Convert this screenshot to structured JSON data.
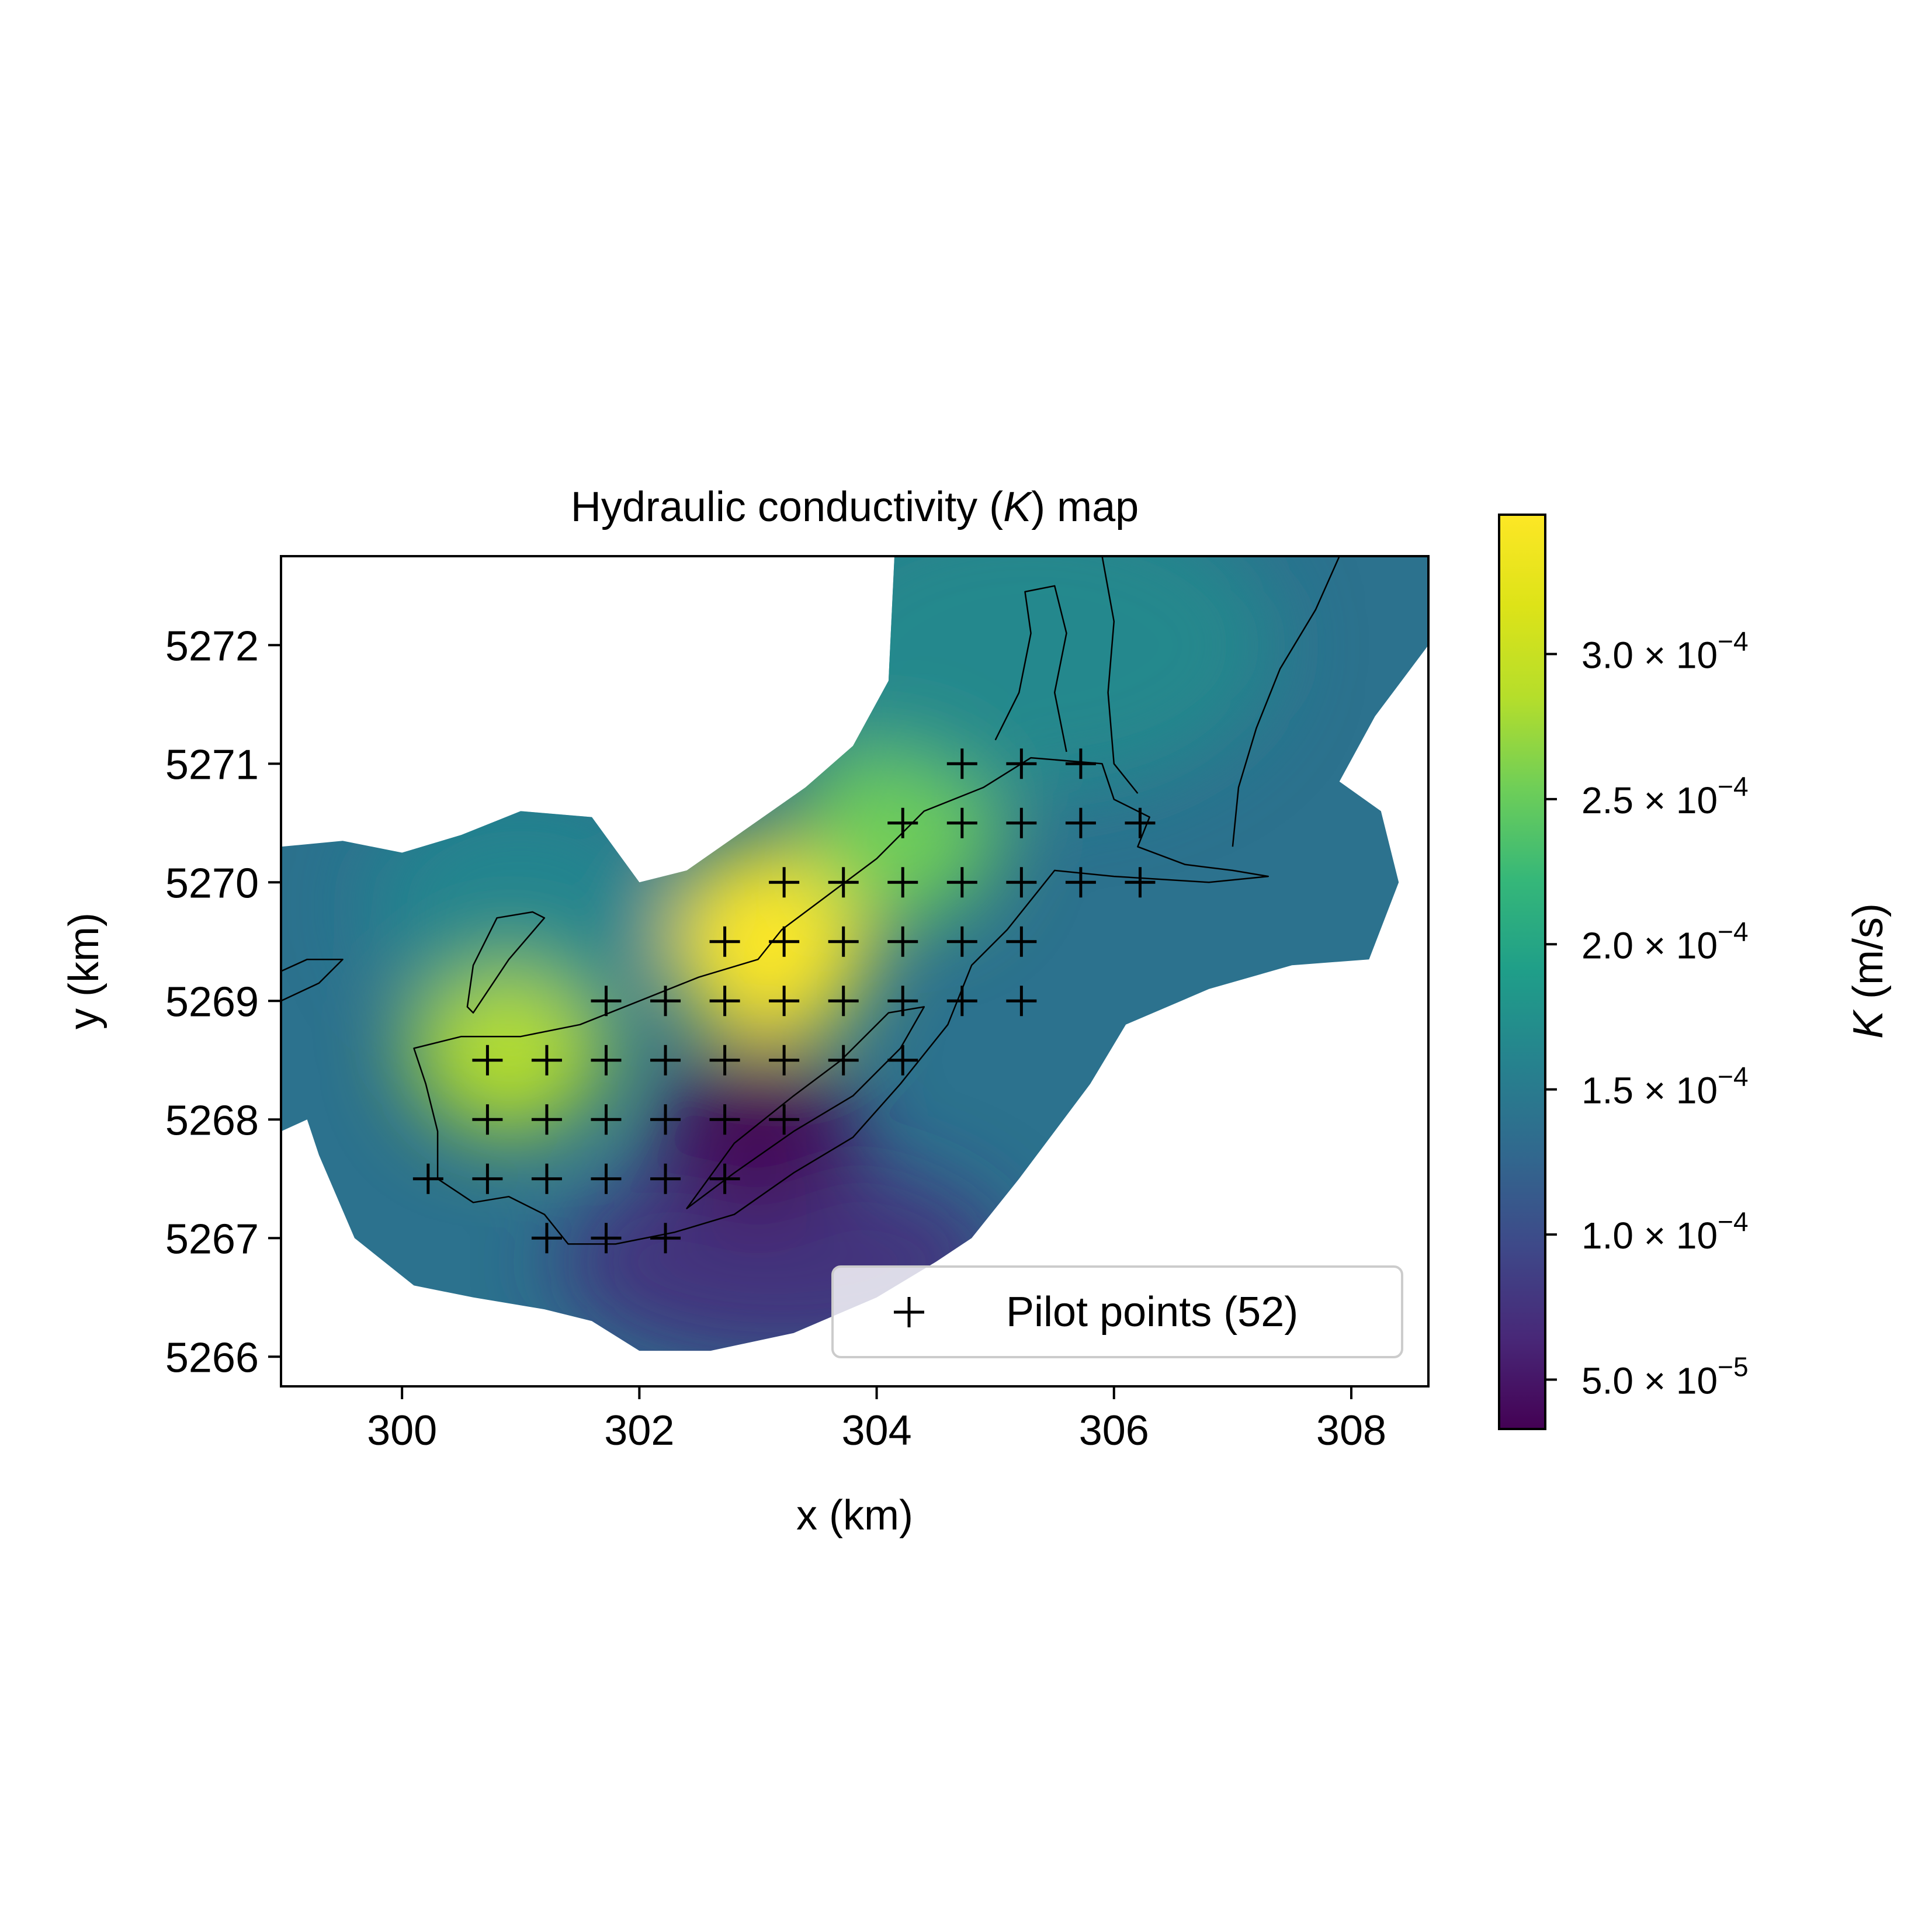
{
  "chart_data": {
    "type": "heatmap",
    "title_prefix": "Hydraulic conductivity (",
    "title_var": "K",
    "title_suffix": ") map",
    "xlabel": "x (km)",
    "ylabel": "y (km)",
    "xlim": [
      298.98,
      308.65
    ],
    "ylim": [
      5265.75,
      5272.75
    ],
    "x_ticks": [
      "300",
      "302",
      "304",
      "306",
      "308"
    ],
    "x_tick_values": [
      300,
      302,
      304,
      306,
      308
    ],
    "y_ticks": [
      "5266",
      "5267",
      "5268",
      "5269",
      "5270",
      "5271",
      "5272"
    ],
    "y_tick_values": [
      5266,
      5267,
      5268,
      5269,
      5270,
      5271,
      5272
    ],
    "grid": false,
    "colormap": "viridis",
    "colorbar": {
      "label_var": "K",
      "label_unit": " (m/s)",
      "range": [
        3.3e-05,
        0.000348
      ],
      "ticks": [
        {
          "value": 5e-05,
          "mantissa": "5.0",
          "exp": "−5"
        },
        {
          "value": 0.0001,
          "mantissa": "1.0",
          "exp": "−4"
        },
        {
          "value": 0.00015,
          "mantissa": "1.5",
          "exp": "−4"
        },
        {
          "value": 0.0002,
          "mantissa": "2.0",
          "exp": "−4"
        },
        {
          "value": 0.00025,
          "mantissa": "2.5",
          "exp": "−4"
        },
        {
          "value": 0.0003,
          "mantissa": "3.0",
          "exp": "−4"
        }
      ],
      "times": "×",
      "base": "10"
    },
    "legend": {
      "label": "Pilot points (52)",
      "marker": "+",
      "placement": "lower-right"
    },
    "pilot_points": [
      [
        300.22,
        5267.5
      ],
      [
        300.72,
        5268.5
      ],
      [
        301.22,
        5268.5
      ],
      [
        301.72,
        5268.5
      ],
      [
        302.22,
        5268.5
      ],
      [
        302.72,
        5268.5
      ],
      [
        303.22,
        5268.5
      ],
      [
        303.72,
        5268.5
      ],
      [
        304.22,
        5268.5
      ],
      [
        300.72,
        5268.0
      ],
      [
        301.22,
        5268.0
      ],
      [
        301.72,
        5268.0
      ],
      [
        302.22,
        5268.0
      ],
      [
        302.72,
        5268.0
      ],
      [
        303.22,
        5268.0
      ],
      [
        300.72,
        5267.5
      ],
      [
        301.22,
        5267.5
      ],
      [
        301.72,
        5267.5
      ],
      [
        302.22,
        5267.5
      ],
      [
        302.72,
        5267.5
      ],
      [
        301.22,
        5267.0
      ],
      [
        301.72,
        5267.0
      ],
      [
        302.22,
        5267.0
      ],
      [
        301.72,
        5269.0
      ],
      [
        302.22,
        5269.0
      ],
      [
        302.72,
        5269.0
      ],
      [
        303.22,
        5269.0
      ],
      [
        303.72,
        5269.0
      ],
      [
        304.22,
        5269.0
      ],
      [
        304.72,
        5269.0
      ],
      [
        305.22,
        5269.0
      ],
      [
        302.72,
        5269.5
      ],
      [
        303.22,
        5269.5
      ],
      [
        303.72,
        5269.5
      ],
      [
        304.22,
        5269.5
      ],
      [
        304.72,
        5269.5
      ],
      [
        305.22,
        5269.5
      ],
      [
        303.22,
        5270.0
      ],
      [
        303.72,
        5270.0
      ],
      [
        304.22,
        5270.0
      ],
      [
        304.72,
        5270.0
      ],
      [
        305.22,
        5270.0
      ],
      [
        305.72,
        5270.0
      ],
      [
        306.22,
        5270.0
      ],
      [
        304.22,
        5270.5
      ],
      [
        304.72,
        5270.5
      ],
      [
        305.22,
        5270.5
      ],
      [
        305.72,
        5270.5
      ],
      [
        306.22,
        5270.5
      ],
      [
        304.72,
        5271.0
      ],
      [
        305.22,
        5271.0
      ],
      [
        305.72,
        5271.0
      ]
    ],
    "field_hotspots": [
      {
        "x": 300.9,
        "y": 5268.7,
        "k": 0.0003
      },
      {
        "x": 303.1,
        "y": 5269.5,
        "k": 0.00034
      },
      {
        "x": 304.2,
        "y": 5270.5,
        "k": 0.00026
      },
      {
        "x": 303.0,
        "y": 5267.8,
        "k": 4e-05
      }
    ],
    "domain_outline": [
      [
        298.98,
        5270.3
      ],
      [
        299.5,
        5270.35
      ],
      [
        300.0,
        5270.25
      ],
      [
        300.5,
        5270.4
      ],
      [
        301.0,
        5270.6
      ],
      [
        301.6,
        5270.55
      ],
      [
        302.0,
        5270.0
      ],
      [
        302.4,
        5270.1
      ],
      [
        302.9,
        5270.45
      ],
      [
        303.4,
        5270.8
      ],
      [
        303.8,
        5271.15
      ],
      [
        304.1,
        5271.7
      ],
      [
        304.15,
        5272.75
      ],
      [
        308.65,
        5272.75
      ],
      [
        308.65,
        5272.0
      ],
      [
        308.2,
        5271.4
      ],
      [
        307.9,
        5270.85
      ],
      [
        308.25,
        5270.6
      ],
      [
        308.4,
        5270.0
      ],
      [
        308.15,
        5269.35
      ],
      [
        307.5,
        5269.3
      ],
      [
        306.8,
        5269.1
      ],
      [
        306.1,
        5268.8
      ],
      [
        305.8,
        5268.3
      ],
      [
        305.2,
        5267.5
      ],
      [
        304.8,
        5267.0
      ],
      [
        304.5,
        5266.8
      ],
      [
        304.0,
        5266.5
      ],
      [
        303.3,
        5266.2
      ],
      [
        302.6,
        5266.05
      ],
      [
        302.0,
        5266.05
      ],
      [
        301.6,
        5266.3
      ],
      [
        301.2,
        5266.4
      ],
      [
        300.6,
        5266.5
      ],
      [
        300.1,
        5266.6
      ],
      [
        299.6,
        5267.0
      ],
      [
        299.3,
        5267.7
      ],
      [
        299.2,
        5268.0
      ],
      [
        298.98,
        5267.9
      ]
    ],
    "outlines": [
      [
        [
          300.1,
          5268.6
        ],
        [
          300.5,
          5268.7
        ],
        [
          301.0,
          5268.7
        ],
        [
          301.5,
          5268.8
        ],
        [
          302.0,
          5269.0
        ],
        [
          302.5,
          5269.2
        ],
        [
          303.0,
          5269.35
        ],
        [
          303.2,
          5269.6
        ],
        [
          303.6,
          5269.9
        ],
        [
          304.0,
          5270.2
        ],
        [
          304.4,
          5270.6
        ],
        [
          304.9,
          5270.8
        ],
        [
          305.3,
          5271.05
        ],
        [
          305.9,
          5271.0
        ],
        [
          306.0,
          5270.7
        ],
        [
          306.3,
          5270.55
        ],
        [
          306.2,
          5270.3
        ],
        [
          306.6,
          5270.15
        ],
        [
          307.0,
          5270.1
        ],
        [
          307.3,
          5270.05
        ],
        [
          306.8,
          5270.0
        ],
        [
          306.0,
          5270.05
        ],
        [
          305.5,
          5270.1
        ],
        [
          305.1,
          5269.6
        ],
        [
          304.8,
          5269.3
        ],
        [
          304.6,
          5268.8
        ],
        [
          304.2,
          5268.3
        ],
        [
          303.8,
          5267.85
        ],
        [
          303.3,
          5267.55
        ],
        [
          302.8,
          5267.2
        ],
        [
          302.3,
          5267.05
        ],
        [
          301.8,
          5266.95
        ],
        [
          301.4,
          5266.95
        ],
        [
          301.2,
          5267.2
        ],
        [
          300.9,
          5267.35
        ],
        [
          300.6,
          5267.3
        ],
        [
          300.3,
          5267.5
        ],
        [
          300.3,
          5267.9
        ],
        [
          300.2,
          5268.3
        ],
        [
          300.1,
          5268.6
        ]
      ],
      [
        [
          300.6,
          5268.9
        ],
        [
          300.9,
          5269.35
        ],
        [
          301.2,
          5269.7
        ],
        [
          301.1,
          5269.75
        ],
        [
          300.8,
          5269.7
        ],
        [
          300.6,
          5269.3
        ],
        [
          300.55,
          5268.95
        ],
        [
          300.6,
          5268.9
        ]
      ],
      [
        [
          298.98,
          5269.0
        ],
        [
          299.3,
          5269.15
        ],
        [
          299.5,
          5269.35
        ],
        [
          299.2,
          5269.35
        ],
        [
          298.98,
          5269.25
        ]
      ],
      [
        [
          302.4,
          5267.25
        ],
        [
          302.8,
          5267.8
        ],
        [
          303.3,
          5268.2
        ],
        [
          303.7,
          5268.5
        ],
        [
          304.1,
          5268.9
        ],
        [
          304.4,
          5268.95
        ],
        [
          304.2,
          5268.6
        ],
        [
          303.8,
          5268.2
        ],
        [
          303.3,
          5267.9
        ],
        [
          302.8,
          5267.55
        ],
        [
          302.4,
          5267.25
        ]
      ],
      [
        [
          305.0,
          5271.2
        ],
        [
          305.2,
          5271.6
        ],
        [
          305.3,
          5272.1
        ],
        [
          305.25,
          5272.45
        ],
        [
          305.5,
          5272.5
        ],
        [
          305.6,
          5272.1
        ],
        [
          305.5,
          5271.6
        ],
        [
          305.6,
          5271.1
        ]
      ],
      [
        [
          305.9,
          5272.75
        ],
        [
          306.0,
          5272.2
        ],
        [
          305.95,
          5271.6
        ],
        [
          306.0,
          5271.0
        ],
        [
          306.2,
          5270.75
        ]
      ],
      [
        [
          307.9,
          5272.75
        ],
        [
          307.7,
          5272.3
        ],
        [
          307.4,
          5271.8
        ],
        [
          307.2,
          5271.3
        ],
        [
          307.05,
          5270.8
        ],
        [
          307.0,
          5270.3
        ]
      ]
    ]
  }
}
